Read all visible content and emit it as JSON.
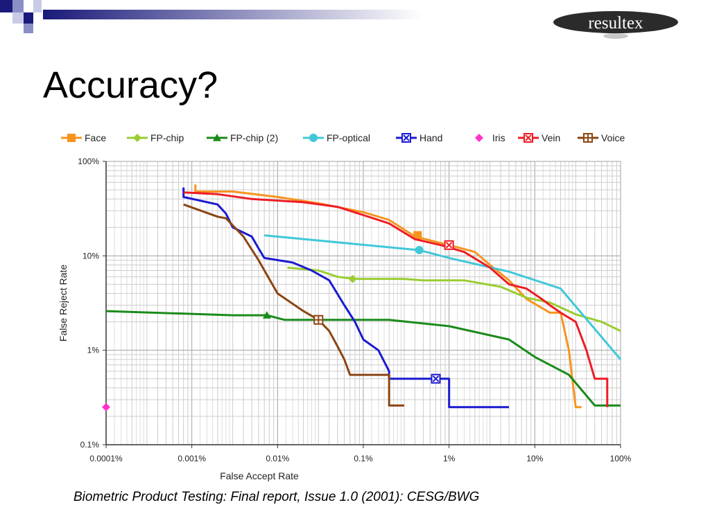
{
  "slide": {
    "title": "Accuracy?",
    "caption": "Biometric Product Testing: Final report, Issue 1.0 (2001): CESG/BWG",
    "logo_text": "resultex",
    "colors": {
      "header_gradient_start": "#1a1a7a",
      "header_gradient_end": "#ffffff",
      "logo_bg": "#2b2b2b"
    }
  },
  "chart_data": {
    "type": "line",
    "xlabel": "False Accept Rate",
    "ylabel": "False Reject Rate",
    "xscale": "log",
    "yscale": "log",
    "xlim": [
      0.0001,
      100
    ],
    "ylim": [
      0.1,
      100
    ],
    "grid": true,
    "legend_position": "top",
    "x_ticks": [
      0.0001,
      0.001,
      0.01,
      0.1,
      1,
      10,
      100
    ],
    "x_tick_labels": [
      "0.0001%",
      "0.001%",
      "0.01%",
      "0.1%",
      "1%",
      "10%",
      "100%"
    ],
    "y_ticks": [
      0.1,
      1,
      10,
      100
    ],
    "y_tick_labels": [
      "0.1%",
      "1%",
      "10%",
      "100%"
    ],
    "series": [
      {
        "name": "Face",
        "color": "#f7941d",
        "marker": "square",
        "points": [
          [
            0.0011,
            57
          ],
          [
            0.0011,
            48
          ],
          [
            0.003,
            48
          ],
          [
            0.01,
            42
          ],
          [
            0.03,
            36
          ],
          [
            0.1,
            29
          ],
          [
            0.2,
            24
          ],
          [
            0.4,
            16
          ],
          [
            1,
            13
          ],
          [
            2,
            11
          ],
          [
            3,
            8
          ],
          [
            5,
            5.5
          ],
          [
            8,
            3.5
          ],
          [
            15,
            2.5
          ],
          [
            20,
            2.5
          ],
          [
            25,
            1
          ],
          [
            30,
            0.25
          ],
          [
            35,
            0.25
          ]
        ],
        "marker_points": [
          [
            0.43,
            16.5
          ]
        ]
      },
      {
        "name": "FP-chip",
        "color": "#9acd32",
        "marker": "diamond",
        "points": [
          [
            0.013,
            7.5
          ],
          [
            0.03,
            7
          ],
          [
            0.05,
            6
          ],
          [
            0.08,
            5.7
          ],
          [
            0.3,
            5.7
          ],
          [
            0.5,
            5.5
          ],
          [
            1.5,
            5.5
          ],
          [
            4,
            4.7
          ],
          [
            8,
            3.6
          ],
          [
            15,
            3.2
          ],
          [
            30,
            2.4
          ],
          [
            60,
            2
          ],
          [
            100,
            1.6
          ]
        ],
        "marker_points": [
          [
            0.075,
            5.7
          ]
        ]
      },
      {
        "name": "FP-chip (2)",
        "color": "#1a8a1a",
        "marker": "triangle",
        "points": [
          [
            0.0001,
            2.6
          ],
          [
            0.003,
            2.35
          ],
          [
            0.0075,
            2.35
          ],
          [
            0.012,
            2.1
          ],
          [
            0.1,
            2.1
          ],
          [
            0.2,
            2.1
          ],
          [
            1,
            1.8
          ],
          [
            5,
            1.3
          ],
          [
            10,
            0.85
          ],
          [
            25,
            0.55
          ],
          [
            50,
            0.26
          ],
          [
            100,
            0.26
          ]
        ],
        "marker_points": [
          [
            0.0075,
            2.35
          ]
        ]
      },
      {
        "name": "FP-optical",
        "color": "#40c8d8",
        "marker": "circle",
        "points": [
          [
            0.007,
            16.5
          ],
          [
            0.45,
            11.5
          ],
          [
            1,
            9.5
          ],
          [
            5,
            6.8
          ],
          [
            20,
            4.5
          ],
          [
            100,
            0.8
          ]
        ],
        "marker_points": [
          [
            0.45,
            11.5
          ]
        ]
      },
      {
        "name": "Hand",
        "color": "#1a1ad0",
        "marker": "x",
        "points": [
          [
            0.0008,
            53
          ],
          [
            0.0008,
            42
          ],
          [
            0.002,
            35
          ],
          [
            0.0025,
            28
          ],
          [
            0.003,
            20
          ],
          [
            0.005,
            16
          ],
          [
            0.006,
            12
          ],
          [
            0.007,
            9.5
          ],
          [
            0.015,
            8.5
          ],
          [
            0.025,
            7
          ],
          [
            0.04,
            5.5
          ],
          [
            0.06,
            3
          ],
          [
            0.08,
            2
          ],
          [
            0.1,
            1.3
          ],
          [
            0.15,
            1
          ],
          [
            0.2,
            0.6
          ],
          [
            0.2,
            0.5
          ],
          [
            0.7,
            0.5
          ],
          [
            1,
            0.5
          ],
          [
            1,
            0.25
          ],
          [
            5,
            0.25
          ]
        ],
        "marker_points": [
          [
            0.7,
            0.5
          ]
        ]
      },
      {
        "name": "Iris",
        "color": "#ff33cc",
        "marker": "diamond",
        "points": [],
        "marker_points": [
          [
            0.0001,
            0.25
          ]
        ]
      },
      {
        "name": "Vein",
        "color": "#ee1c24",
        "marker": "square-x",
        "points": [
          [
            0.0008,
            47
          ],
          [
            0.002,
            45
          ],
          [
            0.005,
            40
          ],
          [
            0.02,
            37
          ],
          [
            0.05,
            33
          ],
          [
            0.1,
            27
          ],
          [
            0.2,
            22
          ],
          [
            0.4,
            15
          ],
          [
            0.8,
            13
          ],
          [
            1.5,
            11
          ],
          [
            3,
            7.5
          ],
          [
            5,
            5
          ],
          [
            8,
            4.5
          ],
          [
            12,
            3.5
          ],
          [
            15,
            3
          ],
          [
            20,
            2.5
          ],
          [
            30,
            2
          ],
          [
            40,
            1
          ],
          [
            50,
            0.5
          ],
          [
            70,
            0.5
          ],
          [
            70,
            0.25
          ]
        ],
        "marker_points": [
          [
            1,
            13
          ]
        ]
      },
      {
        "name": "Voice",
        "color": "#8b4513",
        "marker": "square-plus",
        "points": [
          [
            0.0008,
            35
          ],
          [
            0.002,
            26
          ],
          [
            0.0025,
            25
          ],
          [
            0.004,
            16
          ],
          [
            0.006,
            9
          ],
          [
            0.01,
            4
          ],
          [
            0.02,
            2.6
          ],
          [
            0.03,
            2.1
          ],
          [
            0.04,
            1.6
          ],
          [
            0.05,
            1.1
          ],
          [
            0.06,
            0.8
          ],
          [
            0.07,
            0.55
          ],
          [
            0.2,
            0.55
          ],
          [
            0.2,
            0.26
          ],
          [
            0.3,
            0.26
          ]
        ],
        "marker_points": [
          [
            0.03,
            2.1
          ]
        ]
      }
    ]
  }
}
